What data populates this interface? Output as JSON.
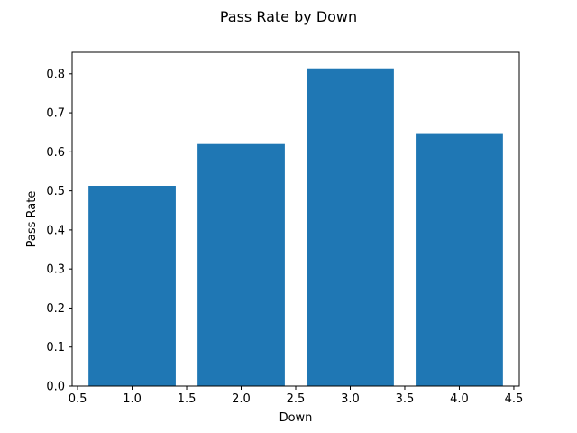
{
  "chart_data": {
    "type": "bar",
    "title": "Pass Rate by Down",
    "xlabel": "Down",
    "ylabel": "Pass Rate",
    "x": [
      1,
      2,
      3,
      4
    ],
    "values": [
      0.513,
      0.62,
      0.814,
      0.648
    ],
    "bar_width": 0.8,
    "xlim": [
      0.45,
      4.55
    ],
    "ylim": [
      0,
      0.855
    ],
    "xticks": [
      0.5,
      1.0,
      1.5,
      2.0,
      2.5,
      3.0,
      3.5,
      4.0,
      4.5
    ],
    "xtick_labels": [
      "0.5",
      "1.0",
      "1.5",
      "2.0",
      "2.5",
      "3.0",
      "3.5",
      "4.0",
      "4.5"
    ],
    "yticks": [
      0.0,
      0.1,
      0.2,
      0.3,
      0.4,
      0.5,
      0.6,
      0.7,
      0.8
    ],
    "ytick_labels": [
      "0.0",
      "0.1",
      "0.2",
      "0.3",
      "0.4",
      "0.5",
      "0.6",
      "0.7",
      "0.8"
    ],
    "grid": false,
    "legend": "none",
    "bar_color": "#1f77b4"
  }
}
